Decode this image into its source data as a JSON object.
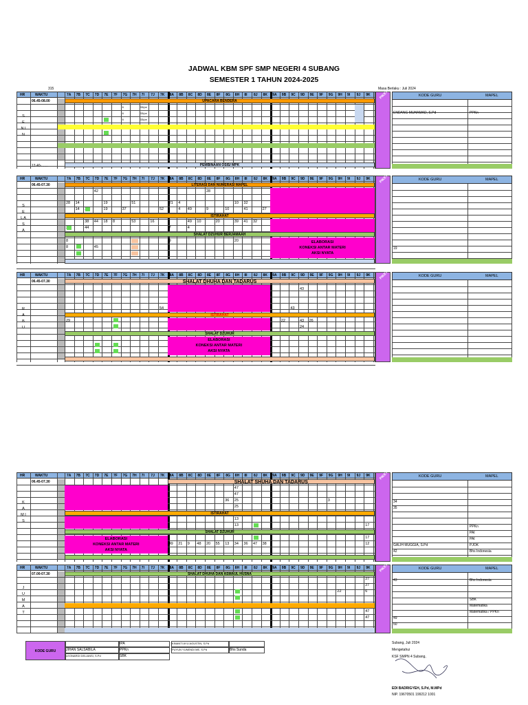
{
  "title1": "JADWAL KBM SPF SMP NEGERI 4 SUBANG",
  "title2": "SEMESTER 1  TAHUN 2024-2025",
  "room": "315",
  "masa_berlaku": "Masa Berlaku :  Juli 2024",
  "header": {
    "hr": "HR",
    "waktu": "WAKTU",
    "classes": [
      "7A",
      "7B",
      "7C",
      "7D",
      "7E",
      "7F",
      "7G",
      "7H",
      "7I",
      "7J",
      "7K",
      "8A",
      "8B",
      "8C",
      "8D",
      "8E",
      "8F",
      "8G",
      "8H",
      "8I",
      "8J",
      "8K",
      "9A",
      "9B",
      "9C",
      "9D",
      "9E",
      "9F",
      "9G",
      "9H",
      "9I",
      "9J",
      "9K"
    ],
    "kode_guru": "KODE GURU",
    "mapel": "MAPEL",
    "piket": "PIKET"
  },
  "senin": {
    "day": "S E N I N",
    "time_start": "06.45-08.00",
    "time_end": "13.40-.......",
    "upacara": "UPACARA BENDERA",
    "pembinaan": "PEMBINAAN OSIS/ MPK",
    "side_name": "ENDANG MUHAMAD, S.Pd",
    "side_mapel": "PPKn",
    "mini": [
      "6",
      "6",
      "6"
    ],
    "mini2": [
      "33/pe",
      "33/pe",
      "33/pe"
    ]
  },
  "selasa": {
    "day": "S E L A S A",
    "time_start": "06.45-07.30",
    "literasi": "LITERASI DAN NUMERASI MAPEL",
    "istirahat": "ISTIRAHAT",
    "dzuhur": "SHALAT DZUHUR BERJAMAAH",
    "elaborasi": "ELABORASI",
    "koneksi": "KONEKSI ANTAR MATERI",
    "aksi": "AKSI NYATA",
    "n_42": "42",
    "n_28": "28",
    "row3": [
      "28",
      "14",
      "19",
      "51",
      "21",
      "4",
      "10",
      "32"
    ],
    "row4": [
      "14",
      "38",
      "19",
      "37",
      "52",
      "4",
      "49",
      "9",
      "10",
      "41",
      "27"
    ],
    "row6": [
      "38",
      "44",
      "18",
      "8",
      "53",
      "16",
      "49",
      "10",
      "20",
      "39",
      "41",
      "32"
    ],
    "row7": [
      "38",
      "44",
      "7",
      "4"
    ],
    "row9": [
      "8",
      "9",
      "20"
    ],
    "row10": [
      "8",
      "45"
    ],
    "side_19": "19"
  },
  "rabu": {
    "day": "R A B U",
    "time_start": "06.45-07.30",
    "dhuha": "SHALAT DHUHA DAN TADARUS",
    "istirahat": "ISTIRAHAT",
    "dzuhur": "SHALAT DZUHUR",
    "elaborasi": "ELABORASI",
    "koneksi": "KONEKSI ANTAR MATERI",
    "aksi": "AKSI NYATA",
    "n_43a": "43",
    "n_54": "54",
    "n_43b": "43",
    "n_29": "29",
    "n_22": "22",
    "n_43c": "43",
    "n_26": "26",
    "n_24": "24",
    "piket_num": "54 / 26"
  },
  "kamis": {
    "day": "K A M I S",
    "time_start": "06.45-07.30",
    "dhuha": "SHALAT SHUHA DAN TADARUS",
    "istirahat": "ISTIRAHAT",
    "dzuhur": "SHALAT DZUHUR",
    "elaborasi": "ELABORASI",
    "koneksi": "KONEKSI ANTAR MATERI",
    "aksi": "AKSI NYATA",
    "nums_col": [
      "47",
      "47",
      "36",
      "25",
      "25",
      "13",
      "13",
      "17",
      "17",
      "12"
    ],
    "n_3": "3",
    "row_bottom": [
      "49",
      "21",
      "9",
      "48",
      "20",
      "55",
      "13",
      "34",
      "36",
      "47",
      "38"
    ],
    "side_rows": [
      {
        "kode": "34",
        "mapel": ""
      },
      {
        "kode": "35",
        "mapel": ""
      },
      {
        "kode": "",
        "mapel": "PPKn"
      },
      {
        "kode": "",
        "mapel": "PAI"
      },
      {
        "kode": "",
        "mapel": "PAI"
      },
      {
        "kode": "GALIH MUGGIA, S.Pd",
        "mapel": "PJOK"
      },
      {
        "kode": "42",
        "mapel": "Bhs Indonesia"
      }
    ]
  },
  "jumat": {
    "day": "J U M A T",
    "time_start": "07.00-07.30",
    "asmaul": "SHALAT DHUHA DAN ASMAUL HUSNA",
    "nums_col": [
      "27",
      "27",
      "6",
      "47",
      "47"
    ],
    "n_22": "22",
    "piket_vals": [
      "3",
      "/",
      "3",
      "/",
      "3"
    ],
    "side_rows": [
      {
        "kode": "43",
        "mapel": "Bhs Indonesia"
      },
      {
        "kode": "",
        "mapel": "SBK"
      },
      {
        "kode": "",
        "mapel": "Matematika"
      },
      {
        "kode": "",
        "mapel": "Matematika / PPKn"
      },
      {
        "kode": "49",
        "mapel": ""
      },
      {
        "kode": "50",
        "mapel": ""
      }
    ]
  },
  "legend": {
    "kode_guru": "KODE GURU",
    "r1a": "",
    "r1b": "IPA",
    "r2a": "JIHAN SALSABILA",
    "r2b": "PPKn",
    "r3a": "LEONARDI DELIANSI, S.Pd",
    "r3b": "SBK",
    "c2r1": "KINANTI AYU AGUSTIN, S.Pd",
    "c2r2": "PUYUN YUNENDI ME, S.Pd",
    "c2r2b": "Bhs Sunda"
  },
  "signature": {
    "place": "Subang,      Juli 2024",
    "mengetahui": "Mengetahui",
    "role": "KSF SMPN 4 Subang,",
    "name": "EDI BADRIGYEH, S.Pd, M.MPd",
    "nip": "NIP. 19670501 199212 1001"
  },
  "colors": {
    "header_blue": "#8db4e2",
    "orange": "#ff9900",
    "yellow": "#ffff33",
    "green": "#99cc66",
    "magenta": "#ff00cc",
    "purple": "#cc66ee",
    "peach": "#f8c4a0",
    "lightblue": "#c8d8f0"
  }
}
